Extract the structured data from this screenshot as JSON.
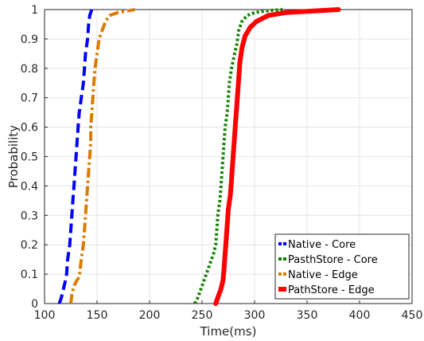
{
  "chart_data": {
    "type": "line",
    "title": "",
    "xlabel": "Time(ms)",
    "ylabel": "Probability",
    "xlim": [
      100,
      450
    ],
    "ylim": [
      0,
      1
    ],
    "xticks": [
      100,
      150,
      200,
      250,
      300,
      350,
      400,
      450
    ],
    "yticks": [
      0,
      0.1,
      0.2,
      0.3,
      0.4,
      0.5,
      0.6,
      0.7,
      0.8,
      0.9,
      1
    ],
    "grid": true,
    "legend_position": "bottom-right",
    "series": [
      {
        "name": "Native - Core",
        "color": "#0000ff",
        "dash": "dashed",
        "points": [
          [
            114,
            0
          ],
          [
            116,
            0.02
          ],
          [
            118,
            0.05
          ],
          [
            120,
            0.08
          ],
          [
            121,
            0.1
          ],
          [
            122,
            0.15
          ],
          [
            124,
            0.2
          ],
          [
            125,
            0.25
          ],
          [
            126,
            0.3
          ],
          [
            127,
            0.35
          ],
          [
            128,
            0.4
          ],
          [
            129,
            0.45
          ],
          [
            130,
            0.5
          ],
          [
            131,
            0.55
          ],
          [
            132,
            0.6
          ],
          [
            133,
            0.65
          ],
          [
            135,
            0.7
          ],
          [
            137,
            0.75
          ],
          [
            138,
            0.8
          ],
          [
            139,
            0.85
          ],
          [
            141,
            0.9
          ],
          [
            142,
            0.95
          ],
          [
            143,
            0.98
          ],
          [
            145,
            1.0
          ]
        ]
      },
      {
        "name": "PasthStore - Core",
        "color": "#138000",
        "dash": "dotted",
        "points": [
          [
            243,
            0
          ],
          [
            246,
            0.02
          ],
          [
            249,
            0.05
          ],
          [
            252,
            0.08
          ],
          [
            255,
            0.11
          ],
          [
            258,
            0.14
          ],
          [
            261,
            0.17
          ],
          [
            263,
            0.2
          ],
          [
            264,
            0.25
          ],
          [
            265,
            0.3
          ],
          [
            267,
            0.35
          ],
          [
            268,
            0.4
          ],
          [
            269,
            0.45
          ],
          [
            270,
            0.5
          ],
          [
            271,
            0.55
          ],
          [
            272,
            0.6
          ],
          [
            274,
            0.65
          ],
          [
            275,
            0.7
          ],
          [
            276,
            0.75
          ],
          [
            278,
            0.8
          ],
          [
            281,
            0.85
          ],
          [
            283,
            0.88
          ],
          [
            285,
            0.93
          ],
          [
            288,
            0.96
          ],
          [
            293,
            0.98
          ],
          [
            300,
            0.99
          ],
          [
            315,
            0.997
          ],
          [
            328,
            1.0
          ]
        ]
      },
      {
        "name": "Native - Edge",
        "color": "#d97b00",
        "dash": "dashdot",
        "points": [
          [
            125,
            0
          ],
          [
            126,
            0.03
          ],
          [
            128,
            0.06
          ],
          [
            131,
            0.08
          ],
          [
            133,
            0.09
          ],
          [
            134,
            0.12
          ],
          [
            135,
            0.15
          ],
          [
            137,
            0.2
          ],
          [
            138,
            0.25
          ],
          [
            139,
            0.3
          ],
          [
            140,
            0.35
          ],
          [
            141,
            0.4
          ],
          [
            142,
            0.45
          ],
          [
            143,
            0.5
          ],
          [
            144,
            0.55
          ],
          [
            144,
            0.6
          ],
          [
            145,
            0.65
          ],
          [
            146,
            0.7
          ],
          [
            147,
            0.75
          ],
          [
            148,
            0.8
          ],
          [
            150,
            0.85
          ],
          [
            152,
            0.9
          ],
          [
            155,
            0.93
          ],
          [
            158,
            0.96
          ],
          [
            162,
            0.98
          ],
          [
            170,
            0.99
          ],
          [
            186,
            1.0
          ]
        ]
      },
      {
        "name": "PathStore - Edge",
        "color": "#ff0000",
        "dash": "solid",
        "points": [
          [
            263,
            0
          ],
          [
            265,
            0.02
          ],
          [
            268,
            0.05
          ],
          [
            270,
            0.08
          ],
          [
            271,
            0.12
          ],
          [
            272,
            0.17
          ],
          [
            273,
            0.22
          ],
          [
            274,
            0.27
          ],
          [
            275,
            0.32
          ],
          [
            277,
            0.37
          ],
          [
            278,
            0.42
          ],
          [
            279,
            0.47
          ],
          [
            280,
            0.52
          ],
          [
            281,
            0.57
          ],
          [
            282,
            0.62
          ],
          [
            283,
            0.67
          ],
          [
            284,
            0.72
          ],
          [
            285,
            0.77
          ],
          [
            286,
            0.82
          ],
          [
            288,
            0.87
          ],
          [
            291,
            0.91
          ],
          [
            296,
            0.94
          ],
          [
            302,
            0.96
          ],
          [
            313,
            0.98
          ],
          [
            330,
            0.99
          ],
          [
            380,
            1.0
          ]
        ]
      }
    ]
  }
}
